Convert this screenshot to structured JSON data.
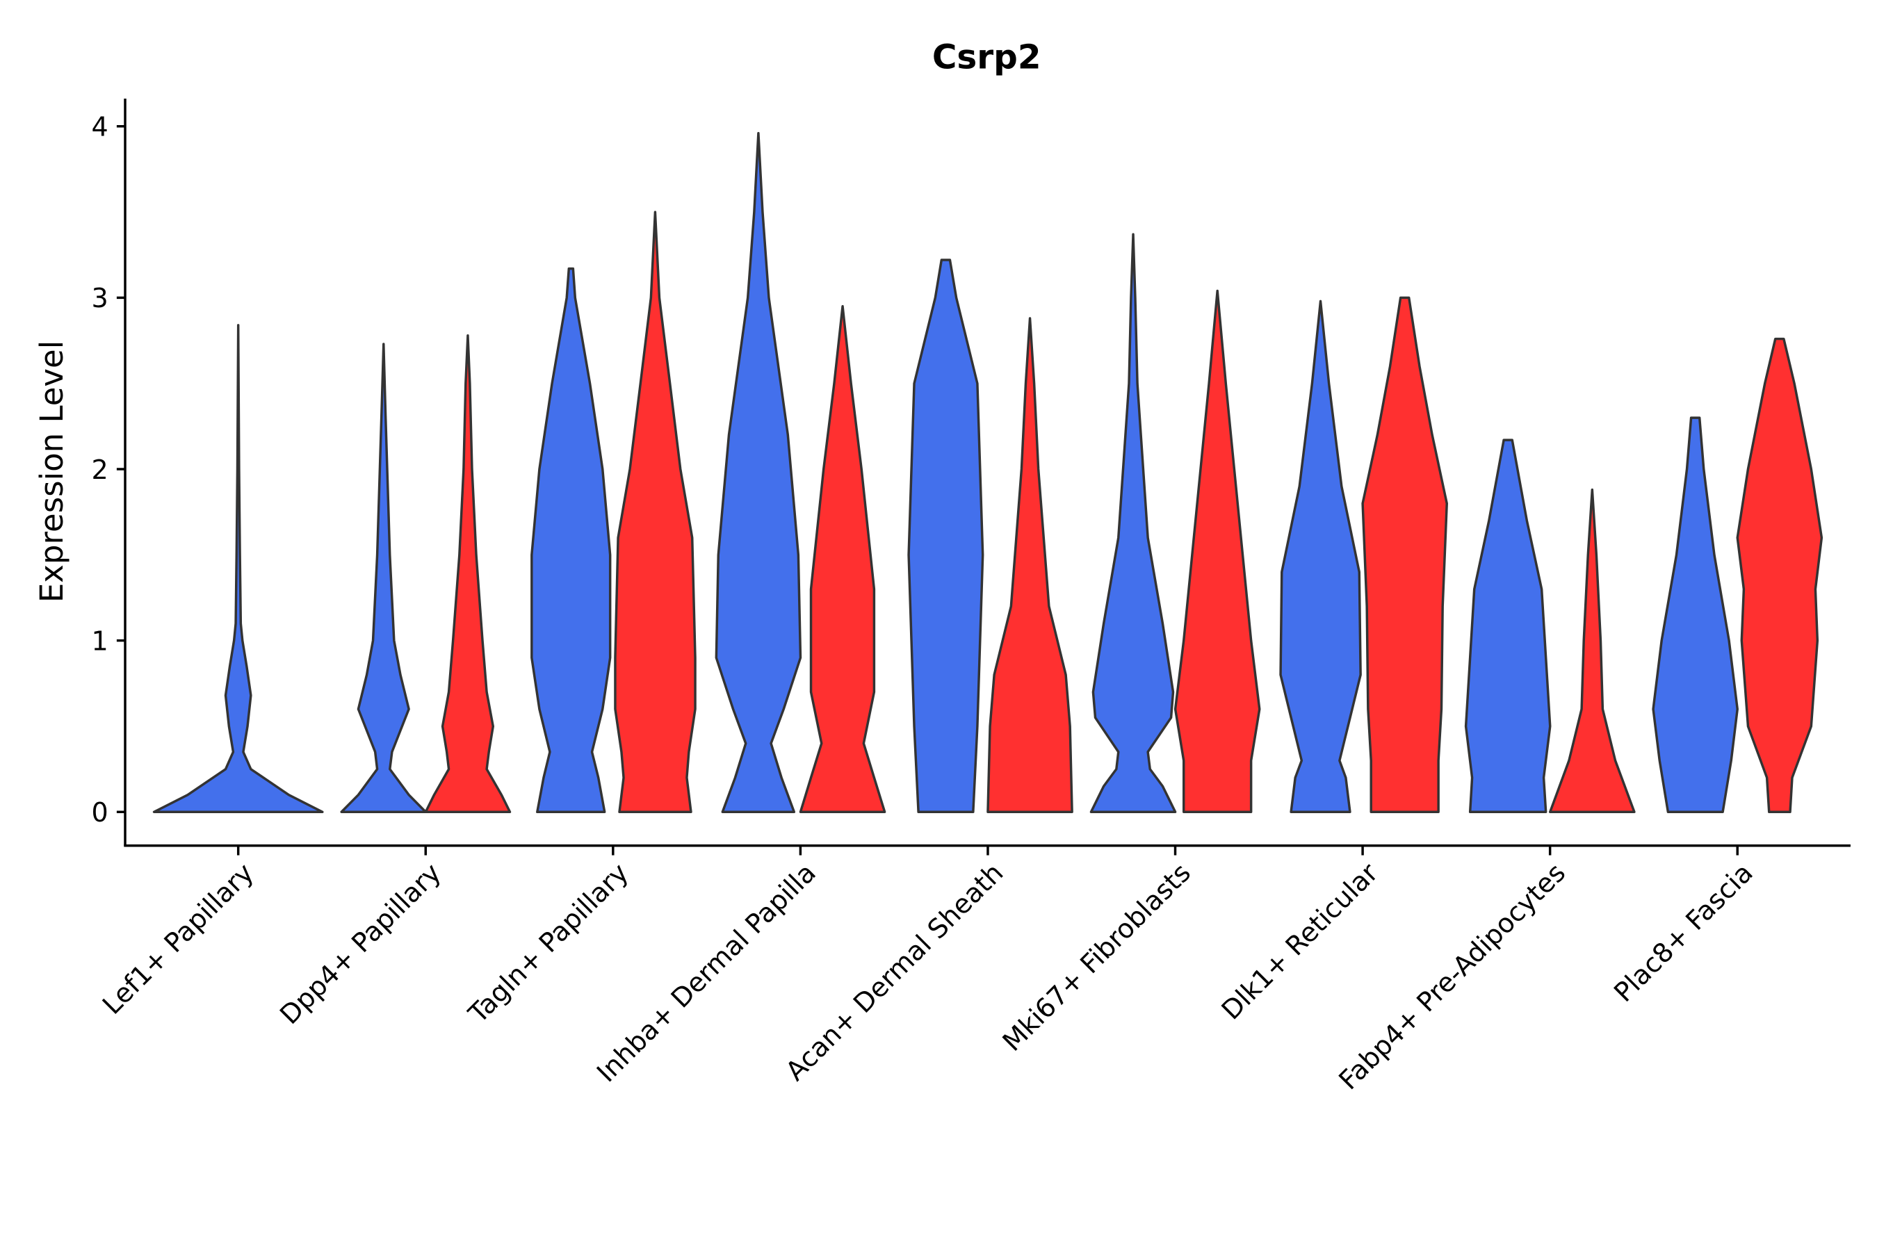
{
  "chart_data": {
    "type": "violin",
    "title": "Csrp2",
    "xlabel": "",
    "ylabel": "Expression Level",
    "ylim": [
      -0.2,
      4.15
    ],
    "yticks": [
      0,
      1,
      2,
      3,
      4
    ],
    "grid": false,
    "legend": "none",
    "categories": [
      "Lef1+ Papillary",
      "Dpp4+ Papillary",
      "Tagln+ Papillary",
      "Inhba+ Dermal Papilla",
      "Acan+ Dermal Sheath",
      "Mki67+ Fibroblasts",
      "Dlk1+ Reticular",
      "Fabp4+ Pre-Adipocytes",
      "Plac8+ Fascia"
    ],
    "series_colors": [
      "#4370EC",
      "#FF3030"
    ],
    "violins": [
      {
        "category": 0,
        "series": 0,
        "single": true,
        "profile": [
          [
            0,
            2.0
          ],
          [
            0.1,
            1.2
          ],
          [
            0.25,
            0.3
          ],
          [
            0.35,
            0.12
          ],
          [
            0.5,
            0.22
          ],
          [
            0.68,
            0.3
          ],
          [
            0.85,
            0.2
          ],
          [
            1.0,
            0.1
          ],
          [
            1.1,
            0.06
          ],
          [
            1.5,
            0.04
          ],
          [
            2.0,
            0.02
          ],
          [
            2.84,
            0
          ]
        ]
      },
      {
        "category": 1,
        "series": 0,
        "profile": [
          [
            0,
            1.0
          ],
          [
            0.1,
            0.6
          ],
          [
            0.25,
            0.15
          ],
          [
            0.35,
            0.2
          ],
          [
            0.6,
            0.6
          ],
          [
            0.8,
            0.4
          ],
          [
            1.0,
            0.25
          ],
          [
            1.5,
            0.15
          ],
          [
            2.3,
            0.05
          ],
          [
            2.73,
            0
          ]
        ]
      },
      {
        "category": 1,
        "series": 1,
        "profile": [
          [
            0,
            1.0
          ],
          [
            0.1,
            0.8
          ],
          [
            0.25,
            0.45
          ],
          [
            0.35,
            0.5
          ],
          [
            0.5,
            0.6
          ],
          [
            0.7,
            0.45
          ],
          [
            1.0,
            0.35
          ],
          [
            1.5,
            0.2
          ],
          [
            2.0,
            0.1
          ],
          [
            2.5,
            0.05
          ],
          [
            2.78,
            0
          ]
        ]
      },
      {
        "category": 2,
        "series": 0,
        "profile": [
          [
            0,
            0.8
          ],
          [
            0.2,
            0.65
          ],
          [
            0.35,
            0.5
          ],
          [
            0.6,
            0.75
          ],
          [
            0.9,
            0.93
          ],
          [
            1.5,
            0.93
          ],
          [
            2.0,
            0.75
          ],
          [
            2.5,
            0.45
          ],
          [
            3.0,
            0.1
          ],
          [
            3.17,
            0.05
          ]
        ]
      },
      {
        "category": 2,
        "series": 1,
        "profile": [
          [
            0,
            0.85
          ],
          [
            0.2,
            0.75
          ],
          [
            0.35,
            0.8
          ],
          [
            0.6,
            0.95
          ],
          [
            0.9,
            0.95
          ],
          [
            1.6,
            0.88
          ],
          [
            2.0,
            0.6
          ],
          [
            2.5,
            0.35
          ],
          [
            3.0,
            0.1
          ],
          [
            3.5,
            0
          ]
        ]
      },
      {
        "category": 3,
        "series": 0,
        "profile": [
          [
            0,
            0.85
          ],
          [
            0.2,
            0.55
          ],
          [
            0.4,
            0.3
          ],
          [
            0.6,
            0.6
          ],
          [
            0.9,
            1.0
          ],
          [
            1.5,
            0.95
          ],
          [
            2.2,
            0.7
          ],
          [
            3.0,
            0.25
          ],
          [
            3.5,
            0.1
          ],
          [
            3.96,
            0
          ]
        ]
      },
      {
        "category": 3,
        "series": 1,
        "profile": [
          [
            0,
            1.0
          ],
          [
            0.2,
            0.75
          ],
          [
            0.4,
            0.5
          ],
          [
            0.7,
            0.75
          ],
          [
            1.3,
            0.75
          ],
          [
            2.0,
            0.45
          ],
          [
            2.5,
            0.2
          ],
          [
            2.95,
            0
          ]
        ]
      },
      {
        "category": 4,
        "series": 0,
        "profile": [
          [
            0,
            0.65
          ],
          [
            0.5,
            0.75
          ],
          [
            1.5,
            0.88
          ],
          [
            2.5,
            0.75
          ],
          [
            3.0,
            0.25
          ],
          [
            3.22,
            0.1
          ]
        ]
      },
      {
        "category": 4,
        "series": 1,
        "profile": [
          [
            0,
            1.0
          ],
          [
            0.5,
            0.95
          ],
          [
            0.8,
            0.85
          ],
          [
            1.2,
            0.45
          ],
          [
            2.0,
            0.2
          ],
          [
            2.5,
            0.1
          ],
          [
            2.88,
            0
          ]
        ]
      },
      {
        "category": 5,
        "series": 0,
        "profile": [
          [
            0,
            1.0
          ],
          [
            0.15,
            0.7
          ],
          [
            0.25,
            0.4
          ],
          [
            0.35,
            0.35
          ],
          [
            0.55,
            0.9
          ],
          [
            0.7,
            0.95
          ],
          [
            1.1,
            0.7
          ],
          [
            1.6,
            0.35
          ],
          [
            2.5,
            0.1
          ],
          [
            3.0,
            0.05
          ],
          [
            3.37,
            0
          ]
        ]
      },
      {
        "category": 5,
        "series": 1,
        "profile": [
          [
            0,
            0.8
          ],
          [
            0.3,
            0.8
          ],
          [
            0.6,
            1.0
          ],
          [
            1.0,
            0.8
          ],
          [
            1.5,
            0.6
          ],
          [
            2.0,
            0.4
          ],
          [
            2.5,
            0.2
          ],
          [
            3.04,
            0
          ]
        ]
      },
      {
        "category": 6,
        "series": 0,
        "profile": [
          [
            0,
            0.7
          ],
          [
            0.2,
            0.6
          ],
          [
            0.3,
            0.45
          ],
          [
            0.5,
            0.65
          ],
          [
            0.8,
            0.95
          ],
          [
            1.4,
            0.92
          ],
          [
            1.9,
            0.5
          ],
          [
            2.5,
            0.2
          ],
          [
            2.98,
            0
          ]
        ]
      },
      {
        "category": 6,
        "series": 1,
        "profile": [
          [
            0,
            0.8
          ],
          [
            0.3,
            0.8
          ],
          [
            0.6,
            0.87
          ],
          [
            1.2,
            0.9
          ],
          [
            1.8,
            1.0
          ],
          [
            2.2,
            0.65
          ],
          [
            2.6,
            0.35
          ],
          [
            3.0,
            0.1
          ]
        ]
      },
      {
        "category": 7,
        "series": 0,
        "profile": [
          [
            0,
            0.9
          ],
          [
            0.2,
            0.85
          ],
          [
            0.5,
            1.0
          ],
          [
            0.9,
            0.9
          ],
          [
            1.3,
            0.8
          ],
          [
            1.7,
            0.45
          ],
          [
            2.17,
            0.1
          ]
        ]
      },
      {
        "category": 7,
        "series": 1,
        "profile": [
          [
            0,
            1.0
          ],
          [
            0.3,
            0.55
          ],
          [
            0.6,
            0.25
          ],
          [
            1.0,
            0.2
          ],
          [
            1.5,
            0.1
          ],
          [
            1.88,
            0
          ]
        ]
      },
      {
        "category": 8,
        "series": 0,
        "profile": [
          [
            0,
            0.65
          ],
          [
            0.3,
            0.85
          ],
          [
            0.6,
            1.0
          ],
          [
            1.0,
            0.8
          ],
          [
            1.5,
            0.45
          ],
          [
            2.0,
            0.2
          ],
          [
            2.3,
            0.1
          ]
        ]
      },
      {
        "category": 8,
        "series": 1,
        "profile": [
          [
            0,
            0.25
          ],
          [
            0.2,
            0.3
          ],
          [
            0.5,
            0.75
          ],
          [
            1.0,
            0.9
          ],
          [
            1.3,
            0.85
          ],
          [
            1.6,
            1.0
          ],
          [
            2.0,
            0.75
          ],
          [
            2.5,
            0.35
          ],
          [
            2.76,
            0.1
          ]
        ]
      }
    ]
  }
}
